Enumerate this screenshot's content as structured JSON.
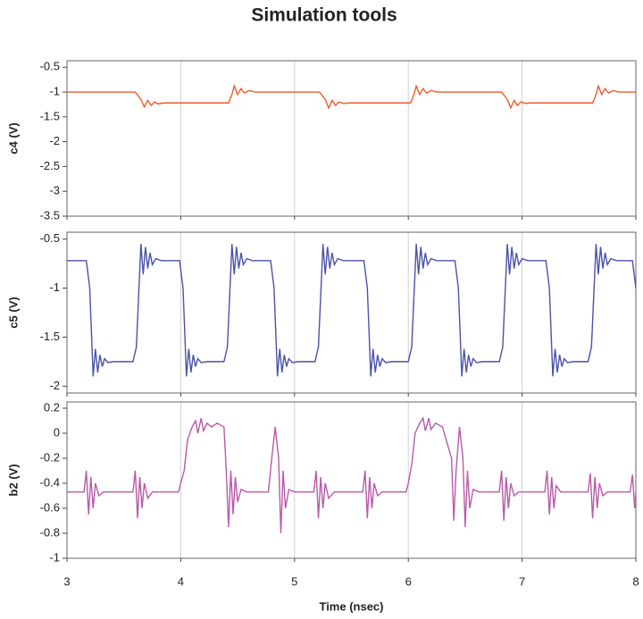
{
  "chart_data": [
    {
      "type": "line",
      "title": "Simulation tools",
      "ylabel": "c4 (V)",
      "xlim": [
        3,
        8
      ],
      "xticks": [
        3,
        4,
        5,
        6,
        7,
        8
      ],
      "ylim": [
        -3.5,
        -0.37
      ],
      "yticks": [
        -0.5,
        -1,
        -1.5,
        -2,
        -2.5,
        -3,
        -3.5
      ],
      "grid": "x",
      "series": [
        {
          "color": "#f05a28",
          "x": [
            3.0,
            3.6,
            3.65,
            3.68,
            3.71,
            3.74,
            3.77,
            3.8,
            3.85,
            4.42,
            4.45,
            4.47,
            4.5,
            4.53,
            4.56,
            4.6,
            4.65,
            5.22,
            5.27,
            5.3,
            5.33,
            5.36,
            5.39,
            5.43,
            5.48,
            6.02,
            6.05,
            6.07,
            6.1,
            6.13,
            6.16,
            6.2,
            6.25,
            6.82,
            6.87,
            6.9,
            6.93,
            6.96,
            6.99,
            7.03,
            7.08,
            7.62,
            7.65,
            7.67,
            7.7,
            7.73,
            7.76,
            7.8,
            7.85,
            8.0
          ],
          "values": [
            -1.0,
            -1.0,
            -1.15,
            -1.3,
            -1.17,
            -1.27,
            -1.2,
            -1.24,
            -1.22,
            -1.22,
            -1.05,
            -0.88,
            -1.05,
            -0.93,
            -1.02,
            -0.97,
            -1.0,
            -1.0,
            -1.15,
            -1.32,
            -1.17,
            -1.27,
            -1.2,
            -1.23,
            -1.22,
            -1.22,
            -1.05,
            -0.88,
            -1.05,
            -0.93,
            -1.02,
            -0.97,
            -1.0,
            -1.0,
            -1.15,
            -1.32,
            -1.17,
            -1.27,
            -1.2,
            -1.23,
            -1.22,
            -1.22,
            -1.05,
            -0.88,
            -1.05,
            -0.93,
            -1.02,
            -0.97,
            -1.0,
            -1.0
          ]
        }
      ]
    },
    {
      "type": "line",
      "ylabel": "c5 (V)",
      "xlim": [
        3,
        8
      ],
      "xticks": [
        3,
        4,
        5,
        6,
        7,
        8
      ],
      "ylim": [
        -2.07,
        -0.43
      ],
      "yticks": [
        -0.5,
        -1,
        -1.5,
        -2
      ],
      "grid": "x",
      "series": [
        {
          "color": "#4a52a8",
          "x": [
            3.0,
            3.17,
            3.2,
            3.23,
            3.25,
            3.27,
            3.29,
            3.31,
            3.33,
            3.36,
            3.41,
            3.58,
            3.61,
            3.65,
            3.67,
            3.69,
            3.71,
            3.73,
            3.75,
            3.78,
            3.83,
            3.99,
            4.02,
            4.05,
            4.07,
            4.09,
            4.11,
            4.13,
            4.15,
            4.18,
            4.23,
            4.38,
            4.41,
            4.45,
            4.47,
            4.49,
            4.51,
            4.53,
            4.55,
            4.58,
            4.63,
            4.79,
            4.82,
            4.85,
            4.87,
            4.89,
            4.91,
            4.93,
            4.95,
            4.98,
            5.03,
            5.18,
            5.21,
            5.25,
            5.27,
            5.29,
            5.31,
            5.33,
            5.35,
            5.38,
            5.43,
            5.61,
            5.64,
            5.67,
            5.69,
            5.71,
            5.73,
            5.75,
            5.77,
            5.8,
            5.85,
            6.0,
            6.03,
            6.07,
            6.09,
            6.11,
            6.13,
            6.15,
            6.17,
            6.2,
            6.25,
            6.41,
            6.44,
            6.47,
            6.49,
            6.51,
            6.53,
            6.55,
            6.57,
            6.6,
            6.65,
            6.8,
            6.83,
            6.87,
            6.89,
            6.91,
            6.93,
            6.95,
            6.97,
            7.0,
            7.05,
            7.21,
            7.24,
            7.27,
            7.29,
            7.31,
            7.33,
            7.35,
            7.37,
            7.4,
            7.45,
            7.58,
            7.61,
            7.65,
            7.67,
            7.69,
            7.71,
            7.73,
            7.75,
            7.78,
            7.83,
            7.97,
            8.0
          ],
          "values": [
            -0.72,
            -0.72,
            -1.0,
            -1.9,
            -1.62,
            -1.86,
            -1.68,
            -1.8,
            -1.72,
            -1.76,
            -1.75,
            -1.75,
            -1.6,
            -0.55,
            -0.86,
            -0.58,
            -0.8,
            -0.64,
            -0.76,
            -0.7,
            -0.72,
            -0.72,
            -1.0,
            -1.9,
            -1.62,
            -1.86,
            -1.68,
            -1.8,
            -1.72,
            -1.76,
            -1.75,
            -1.75,
            -1.6,
            -0.55,
            -0.86,
            -0.58,
            -0.8,
            -0.64,
            -0.76,
            -0.7,
            -0.72,
            -0.72,
            -1.0,
            -1.9,
            -1.62,
            -1.86,
            -1.68,
            -1.8,
            -1.72,
            -1.76,
            -1.75,
            -1.75,
            -1.6,
            -0.55,
            -0.86,
            -0.58,
            -0.8,
            -0.64,
            -0.76,
            -0.7,
            -0.72,
            -0.72,
            -1.0,
            -1.9,
            -1.62,
            -1.86,
            -1.68,
            -1.8,
            -1.72,
            -1.76,
            -1.75,
            -1.75,
            -1.6,
            -0.55,
            -0.86,
            -0.58,
            -0.8,
            -0.64,
            -0.76,
            -0.7,
            -0.72,
            -0.72,
            -1.0,
            -1.9,
            -1.62,
            -1.86,
            -1.68,
            -1.8,
            -1.72,
            -1.76,
            -1.75,
            -1.75,
            -1.6,
            -0.55,
            -0.86,
            -0.58,
            -0.8,
            -0.64,
            -0.76,
            -0.7,
            -0.72,
            -0.72,
            -1.0,
            -1.9,
            -1.62,
            -1.86,
            -1.68,
            -1.8,
            -1.72,
            -1.76,
            -1.75,
            -1.75,
            -1.6,
            -0.55,
            -0.86,
            -0.58,
            -0.8,
            -0.64,
            -0.76,
            -0.7,
            -0.72,
            -0.72,
            -1.0
          ]
        }
      ]
    },
    {
      "type": "line",
      "ylabel": "b2 (V)",
      "xlabel": "Time (nsec)",
      "xlim": [
        3,
        8
      ],
      "xticks": [
        3,
        4,
        5,
        6,
        7,
        8
      ],
      "ylim": [
        -1,
        0.25
      ],
      "yticks": [
        0.2,
        0,
        -0.2,
        -0.4,
        -0.6,
        -0.8,
        -1
      ],
      "grid": "x",
      "series": [
        {
          "color": "#b85aa8",
          "x": [
            3.0,
            3.15,
            3.17,
            3.19,
            3.21,
            3.23,
            3.25,
            3.28,
            3.32,
            3.58,
            3.6,
            3.62,
            3.64,
            3.66,
            3.68,
            3.71,
            3.75,
            3.98,
            4.0,
            4.03,
            4.06,
            4.1,
            4.13,
            4.15,
            4.18,
            4.2,
            4.23,
            4.27,
            4.32,
            4.38,
            4.4,
            4.42,
            4.44,
            4.46,
            4.48,
            4.5,
            4.53,
            4.58,
            4.77,
            4.8,
            4.83,
            4.86,
            4.88,
            4.9,
            4.92,
            4.95,
            5.0,
            5.17,
            5.19,
            5.21,
            5.23,
            5.25,
            5.27,
            5.3,
            5.35,
            5.6,
            5.62,
            5.64,
            5.66,
            5.68,
            5.7,
            5.73,
            5.77,
            5.98,
            6.0,
            6.03,
            6.06,
            6.1,
            6.13,
            6.15,
            6.18,
            6.2,
            6.24,
            6.3,
            6.38,
            6.4,
            6.42,
            6.45,
            6.48,
            6.5,
            6.52,
            6.54,
            6.57,
            6.62,
            6.8,
            6.82,
            6.84,
            6.86,
            6.88,
            6.9,
            6.93,
            6.97,
            7.2,
            7.22,
            7.24,
            7.26,
            7.28,
            7.3,
            7.34,
            7.58,
            7.6,
            7.62,
            7.64,
            7.66,
            7.68,
            7.71,
            7.75,
            7.95,
            7.97,
            7.99,
            8.0
          ],
          "values": [
            -0.47,
            -0.47,
            -0.3,
            -0.65,
            -0.35,
            -0.6,
            -0.4,
            -0.5,
            -0.47,
            -0.47,
            -0.3,
            -0.68,
            -0.35,
            -0.6,
            -0.4,
            -0.52,
            -0.47,
            -0.47,
            -0.4,
            -0.3,
            -0.05,
            0.05,
            0.1,
            0.0,
            0.12,
            0.02,
            0.08,
            0.05,
            0.08,
            0.05,
            -0.3,
            -0.75,
            -0.3,
            -0.65,
            -0.35,
            -0.55,
            -0.45,
            -0.47,
            -0.47,
            -0.2,
            0.05,
            -0.2,
            -0.8,
            -0.3,
            -0.6,
            -0.45,
            -0.47,
            -0.47,
            -0.3,
            -0.68,
            -0.35,
            -0.6,
            -0.4,
            -0.52,
            -0.47,
            -0.47,
            -0.3,
            -0.68,
            -0.35,
            -0.6,
            -0.4,
            -0.5,
            -0.47,
            -0.47,
            -0.4,
            -0.25,
            0.0,
            0.08,
            0.12,
            0.02,
            0.12,
            0.03,
            0.08,
            0.05,
            -0.2,
            -0.7,
            -0.3,
            0.05,
            -0.2,
            -0.75,
            -0.3,
            -0.6,
            -0.45,
            -0.47,
            -0.47,
            -0.3,
            -0.7,
            -0.35,
            -0.6,
            -0.4,
            -0.5,
            -0.47,
            -0.47,
            -0.3,
            -0.65,
            -0.35,
            -0.6,
            -0.42,
            -0.47,
            -0.47,
            -0.32,
            -0.68,
            -0.35,
            -0.6,
            -0.4,
            -0.5,
            -0.47,
            -0.47,
            -0.33,
            -0.6,
            -0.47
          ]
        }
      ]
    }
  ]
}
